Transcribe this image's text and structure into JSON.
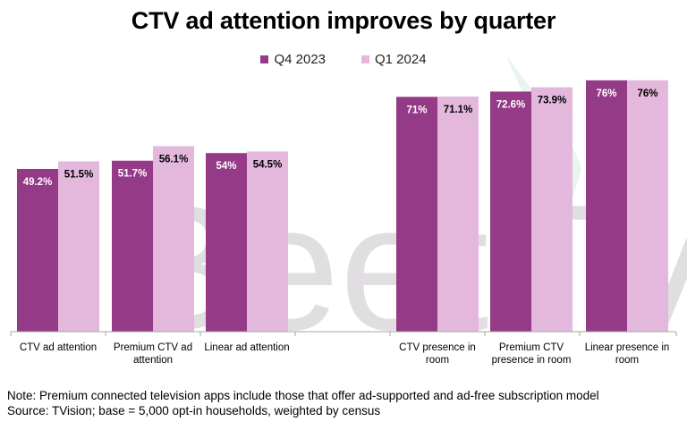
{
  "chart_data": {
    "type": "bar",
    "title": "CTV ad attention improves by quarter",
    "categories": [
      "CTV ad attention",
      "Premium CTV ad attention",
      "Linear ad attention",
      "CTV presence in room",
      "Premium CTV presence in room",
      "Linear presence in room"
    ],
    "category_lines": [
      [
        "CTV ad attention"
      ],
      [
        "Premium CTV ad",
        "attention"
      ],
      [
        "Linear ad attention"
      ],
      [
        "CTV presence in",
        "room"
      ],
      [
        "Premium CTV",
        "presence in room"
      ],
      [
        "Linear presence in",
        "room"
      ]
    ],
    "series": [
      {
        "name": "Q4 2023",
        "color": "#943A86",
        "values": [
          49.2,
          51.7,
          54,
          71,
          72.6,
          76
        ],
        "labels": [
          "49.2%",
          "51.7%",
          "54%",
          "71%",
          "72.6%",
          "76%"
        ]
      },
      {
        "name": "Q1 2024",
        "color": "#E4B8DD",
        "values": [
          51.5,
          56.1,
          54.5,
          71.1,
          73.9,
          76
        ],
        "labels": [
          "51.5%",
          "56.1%",
          "54.5%",
          "71.1%",
          "73.9%",
          "76%"
        ]
      }
    ],
    "ylim": [
      0,
      76.5
    ],
    "xlabel": "",
    "ylabel": "",
    "grid": false,
    "legend": "top-center"
  },
  "watermark": {
    "text": "BeetTV",
    "color": "#7A6F7A"
  },
  "notes": {
    "note": "Note: Premium connected television apps include those that offer ad-supported and ad-free subscription model",
    "source": "Source: TVision; base = 5,000 opt-in households, weighted by census"
  },
  "text_color": "#000000",
  "axis_color": "#A6A6A6"
}
